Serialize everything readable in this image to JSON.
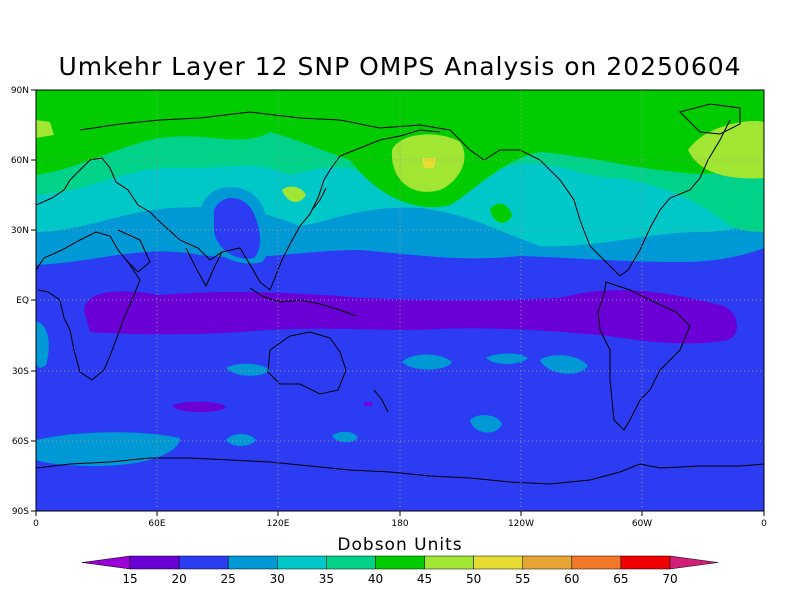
{
  "title": "Umkehr Layer 12 SNP OMPS Analysis on 20250604",
  "map": {
    "projection": "cylindrical equidistant",
    "lon_range": [
      0,
      360
    ],
    "lat_range": [
      -90,
      90
    ],
    "lat_labels": [
      "90N",
      "60N",
      "30N",
      "EQ",
      "30S",
      "60S",
      "90S"
    ],
    "lon_labels": [
      "0",
      "60E",
      "120E",
      "180",
      "120W",
      "60W",
      "0"
    ],
    "gridlines": "dotted"
  },
  "colorbar": {
    "title": "Dobson Units",
    "levels": [
      "15",
      "20",
      "25",
      "30",
      "35",
      "40",
      "45",
      "50",
      "55",
      "60",
      "65",
      "70"
    ],
    "colors": [
      "#9a00d6",
      "#6a00d6",
      "#2c3cf2",
      "#0099d6",
      "#00c8c8",
      "#00d28a",
      "#00cc00",
      "#a0e632",
      "#e6dc32",
      "#e6a532",
      "#f07828",
      "#f00000",
      "#d21e78"
    ]
  }
}
